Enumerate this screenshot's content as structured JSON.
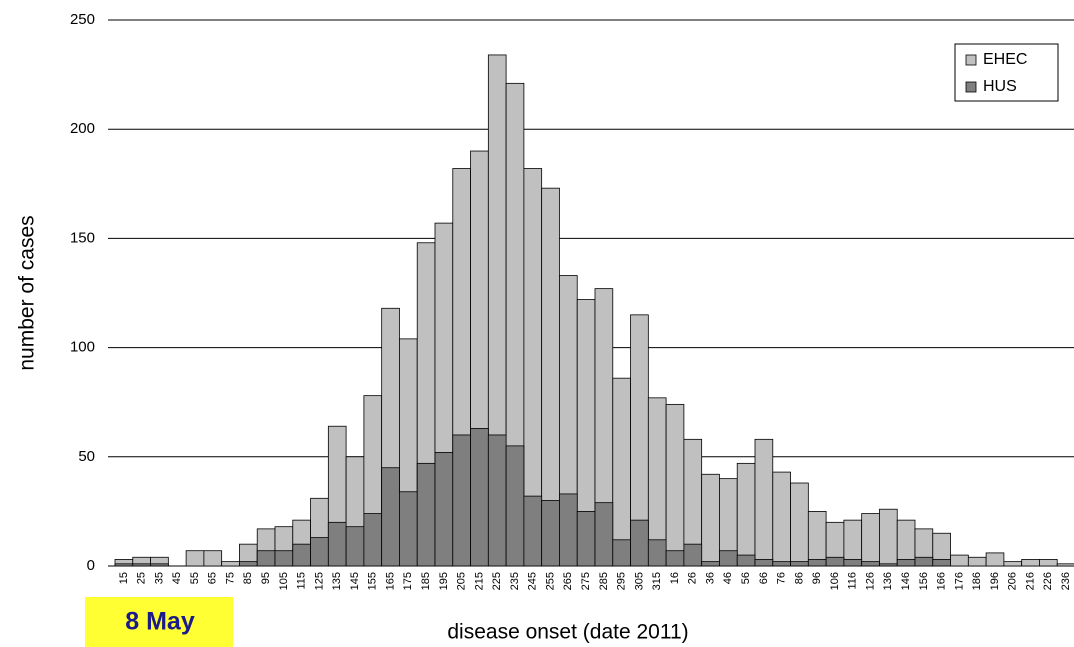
{
  "chart_data": {
    "type": "bar",
    "mode": "overlay",
    "annotation": "8 May",
    "x_label": "disease onset (date 2011)",
    "y_label": "number of cases",
    "categories": [
      "15",
      "25",
      "35",
      "45",
      "55",
      "65",
      "75",
      "85",
      "95",
      "105",
      "115",
      "125",
      "135",
      "145",
      "155",
      "165",
      "175",
      "185",
      "195",
      "205",
      "215",
      "225",
      "235",
      "245",
      "255",
      "265",
      "275",
      "285",
      "295",
      "305",
      "315",
      "16",
      "26",
      "36",
      "46",
      "56",
      "66",
      "76",
      "86",
      "96",
      "106",
      "116",
      "126",
      "136",
      "146",
      "156",
      "166",
      "176",
      "186",
      "196",
      "206",
      "216",
      "226",
      "236"
    ],
    "series": [
      {
        "name": "EHEC",
        "color": "#c0c0c0",
        "values": [
          3,
          4,
          4,
          0,
          7,
          7,
          2,
          10,
          17,
          18,
          21,
          31,
          64,
          50,
          78,
          118,
          104,
          148,
          157,
          182,
          190,
          234,
          221,
          182,
          173,
          133,
          122,
          127,
          86,
          115,
          77,
          74,
          58,
          42,
          40,
          47,
          58,
          43,
          38,
          25,
          20,
          21,
          24,
          26,
          21,
          17,
          15,
          5,
          4,
          6,
          2,
          3,
          3,
          1
        ]
      },
      {
        "name": "HUS",
        "color": "#7f7f7f",
        "values": [
          1,
          1,
          1,
          0,
          0,
          0,
          0,
          2,
          7,
          7,
          10,
          13,
          20,
          18,
          24,
          45,
          34,
          47,
          52,
          60,
          63,
          60,
          55,
          32,
          30,
          33,
          25,
          29,
          12,
          21,
          12,
          7,
          10,
          2,
          7,
          5,
          3,
          2,
          2,
          3,
          4,
          3,
          2,
          1,
          3,
          4,
          3,
          0,
          0,
          0,
          0,
          0,
          0,
          0
        ]
      }
    ],
    "ylim": [
      0,
      250
    ],
    "yticks": [
      0,
      50,
      100,
      150,
      200,
      250
    ],
    "grid": true,
    "legend": "upper right"
  }
}
